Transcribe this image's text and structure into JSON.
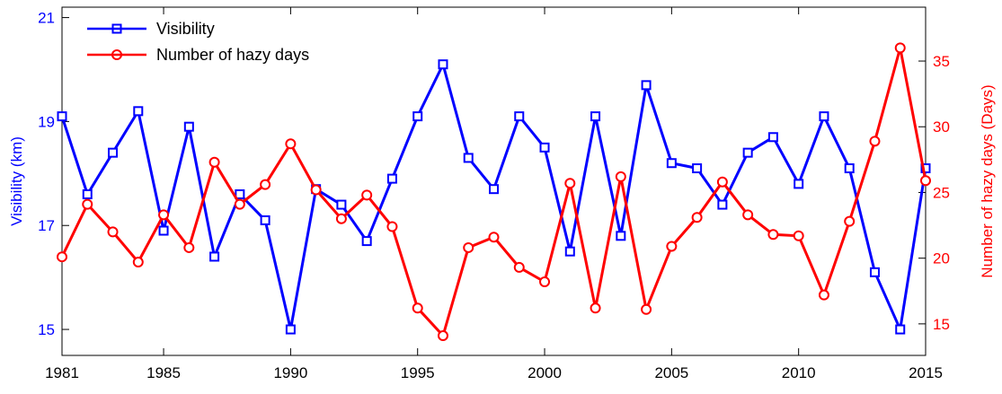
{
  "chart_data": {
    "type": "line",
    "title": "",
    "x": [
      1981,
      1982,
      1983,
      1984,
      1985,
      1986,
      1987,
      1988,
      1989,
      1990,
      1991,
      1992,
      1993,
      1994,
      1995,
      1996,
      1997,
      1998,
      1999,
      2000,
      2001,
      2002,
      2003,
      2004,
      2005,
      2006,
      2007,
      2008,
      2009,
      2010,
      2011,
      2012,
      2013,
      2014,
      2015
    ],
    "xlim": [
      1981,
      2015
    ],
    "xticks": [
      1981,
      1985,
      1990,
      1995,
      2000,
      2005,
      2010,
      2015
    ],
    "xlabel": "",
    "y_left": {
      "label": "Visibility (km)",
      "lim": [
        14.5,
        21.2
      ],
      "ticks": [
        15,
        17,
        19,
        21
      ],
      "color": "#0000ff"
    },
    "y_right": {
      "label": "Number of hazy days (Days)",
      "lim": [
        12.6,
        39.1
      ],
      "ticks": [
        15,
        20,
        25,
        30,
        35
      ],
      "color": "#ff0000"
    },
    "series": [
      {
        "name": "Visibility",
        "axis": "left",
        "color": "#0000ff",
        "marker": "square",
        "values": [
          19.1,
          17.6,
          18.4,
          19.2,
          16.9,
          18.9,
          16.4,
          17.6,
          17.1,
          15.0,
          17.7,
          17.4,
          16.7,
          17.9,
          19.1,
          20.1,
          18.3,
          17.7,
          19.1,
          18.5,
          16.5,
          19.1,
          16.8,
          19.7,
          18.2,
          18.1,
          17.4,
          18.4,
          18.7,
          17.8,
          19.1,
          18.1,
          16.1,
          15.0,
          18.1
        ]
      },
      {
        "name": "Number of hazy days",
        "axis": "right",
        "color": "#ff0000",
        "marker": "circle",
        "values": [
          20.1,
          24.1,
          22.0,
          19.7,
          23.3,
          20.8,
          27.3,
          24.1,
          25.6,
          28.7,
          25.2,
          23.0,
          24.8,
          22.4,
          16.2,
          14.1,
          20.8,
          21.6,
          19.3,
          18.2,
          25.7,
          16.2,
          26.2,
          16.1,
          20.9,
          23.1,
          25.8,
          23.3,
          21.8,
          21.7,
          17.2,
          22.8,
          28.9,
          36.0,
          25.9
        ]
      }
    ],
    "legend": {
      "position": "top-left"
    },
    "grid": false
  }
}
